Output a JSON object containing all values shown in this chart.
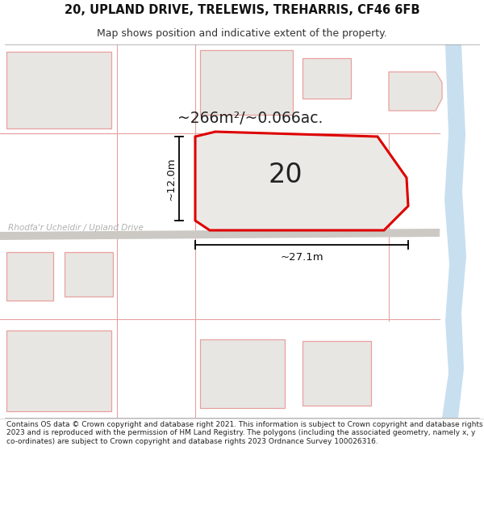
{
  "title_line1": "20, UPLAND DRIVE, TRELEWIS, TREHARRIS, CF46 6FB",
  "title_line2": "Map shows position and indicative extent of the property.",
  "footer_text": "Contains OS data © Crown copyright and database right 2021. This information is subject to Crown copyright and database rights 2023 and is reproduced with the permission of HM Land Registry. The polygons (including the associated geometry, namely x, y co-ordinates) are subject to Crown copyright and database rights 2023 Ordnance Survey 100026316.",
  "map_bg": "#f5f3f0",
  "block_fill": "#e8e6e2",
  "block_edge": "#e8a0a0",
  "highlight_fill": "#ebe9e5",
  "highlight_edge": "#dd0000",
  "water_color": "#c8dff0",
  "road_label_color": "#b0b0b0",
  "area_text": "~266m²/~0.066ac.",
  "number_text": "20",
  "dim_h": "~12.0m",
  "dim_w": "~27.1m",
  "street_label": "Rhodfa'r Ucheldir / Upland Drive",
  "title_fontsize": 10.5,
  "subtitle_fontsize": 9,
  "footer_fontsize": 6.5
}
